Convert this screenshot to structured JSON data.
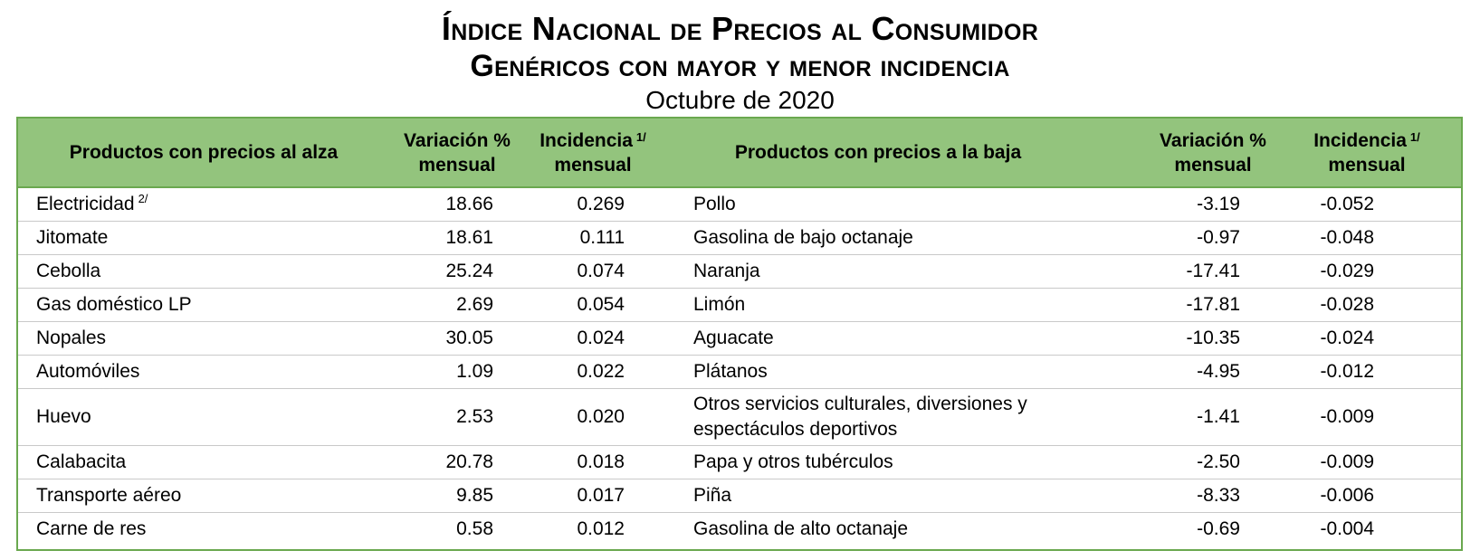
{
  "title": {
    "line1": "Índice Nacional de Precios al Consumidor",
    "line2": "Genéricos con mayor y menor incidencia",
    "line3": "Octubre de 2020"
  },
  "header": {
    "up_products": "Productos con precios al alza",
    "up_variation_1": "Variación %",
    "up_variation_2": "mensual",
    "up_incidence_1": "Incidencia",
    "up_incidence_note": "1/",
    "up_incidence_2": "mensual",
    "down_products": "Productos con precios a la baja",
    "down_variation_1": "Variación %",
    "down_variation_2": "mensual",
    "down_incidence_1": "Incidencia",
    "down_incidence_note": "1/",
    "down_incidence_2": "mensual"
  },
  "rows": [
    {
      "up_name": "Electricidad",
      "up_note": "2/",
      "up_var": "18.66",
      "up_inc": "0.269",
      "down_name": "Pollo",
      "down_var": "-3.19",
      "down_inc": "-0.052"
    },
    {
      "up_name": "Jitomate",
      "up_note": "",
      "up_var": "18.61",
      "up_inc": "0.111",
      "down_name": "Gasolina de bajo octanaje",
      "down_var": "-0.97",
      "down_inc": "-0.048"
    },
    {
      "up_name": "Cebolla",
      "up_note": "",
      "up_var": "25.24",
      "up_inc": "0.074",
      "down_name": "Naranja",
      "down_var": "-17.41",
      "down_inc": "-0.029"
    },
    {
      "up_name": "Gas doméstico LP",
      "up_note": "",
      "up_var": "2.69",
      "up_inc": "0.054",
      "down_name": "Limón",
      "down_var": "-17.81",
      "down_inc": "-0.028"
    },
    {
      "up_name": "Nopales",
      "up_note": "",
      "up_var": "30.05",
      "up_inc": "0.024",
      "down_name": "Aguacate",
      "down_var": "-10.35",
      "down_inc": "-0.024"
    },
    {
      "up_name": "Automóviles",
      "up_note": "",
      "up_var": "1.09",
      "up_inc": "0.022",
      "down_name": "Plátanos",
      "down_var": "-4.95",
      "down_inc": "-0.012"
    },
    {
      "up_name": "Huevo",
      "up_note": "",
      "up_var": "2.53",
      "up_inc": "0.020",
      "down_name": "Otros servicios culturales, diversiones y espectáculos deportivos",
      "down_var": "-1.41",
      "down_inc": "-0.009"
    },
    {
      "up_name": "Calabacita",
      "up_note": "",
      "up_var": "20.78",
      "up_inc": "0.018",
      "down_name": "Papa y otros tubérculos",
      "down_var": "-2.50",
      "down_inc": "-0.009"
    },
    {
      "up_name": "Transporte aéreo",
      "up_note": "",
      "up_var": "9.85",
      "up_inc": "0.017",
      "down_name": "Piña",
      "down_var": "-8.33",
      "down_inc": "-0.006"
    },
    {
      "up_name": "Carne de res",
      "up_note": "",
      "up_var": "0.58",
      "up_inc": "0.012",
      "down_name": "Gasolina de alto octanaje",
      "down_var": "-0.69",
      "down_inc": "-0.004"
    }
  ],
  "colors": {
    "header_fill": "#93c47d",
    "border": "#6aa84f"
  }
}
